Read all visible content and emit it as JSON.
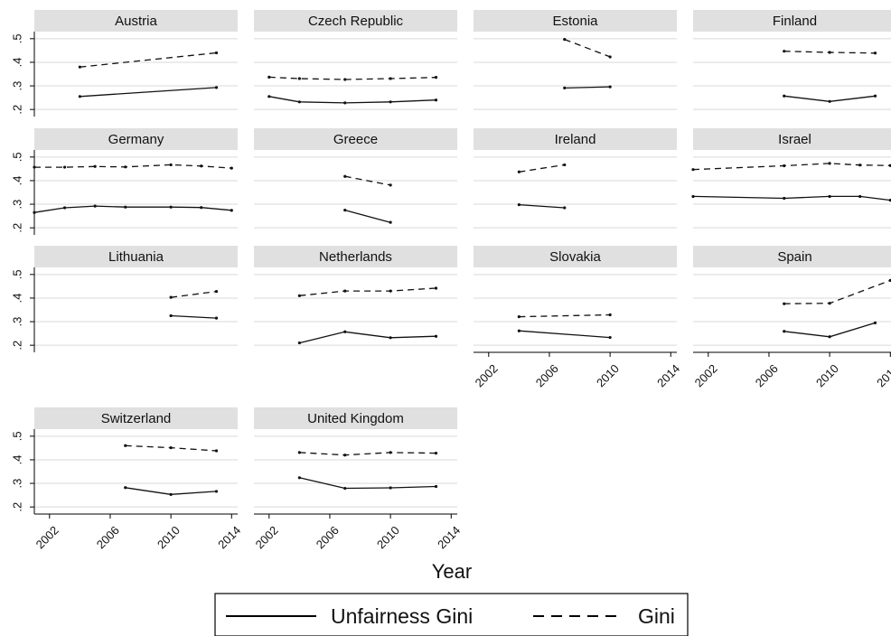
{
  "chart_data": {
    "type": "line",
    "xlabel": "Year",
    "x_ticks": [
      2002,
      2006,
      2010,
      2014
    ],
    "y_ticks": [
      0.2,
      0.3,
      0.4,
      0.5
    ],
    "y_tick_labels": [
      ".2",
      ".3",
      ".4",
      ".5"
    ],
    "xlim": [
      2001,
      2014.4
    ],
    "ylim": [
      0.17,
      0.53
    ],
    "grid": true,
    "legend_position": "bottom",
    "legend": [
      {
        "key": "unfairness",
        "label": "Unfairness Gini",
        "style": "solid"
      },
      {
        "key": "gini",
        "label": "Gini",
        "style": "dashed"
      }
    ],
    "panels": [
      {
        "title": "Austria",
        "unfairness": [
          [
            2004,
            0.255
          ],
          [
            2013,
            0.293
          ]
        ],
        "gini": [
          [
            2004,
            0.38
          ],
          [
            2013,
            0.44
          ]
        ]
      },
      {
        "title": "Czech Republic",
        "unfairness": [
          [
            2002,
            0.255
          ],
          [
            2004,
            0.232
          ],
          [
            2007,
            0.228
          ],
          [
            2010,
            0.232
          ],
          [
            2013,
            0.24
          ]
        ],
        "gini": [
          [
            2002,
            0.337
          ],
          [
            2004,
            0.331
          ],
          [
            2007,
            0.327
          ],
          [
            2010,
            0.331
          ],
          [
            2013,
            0.336
          ]
        ]
      },
      {
        "title": "Estonia",
        "unfairness": [
          [
            2007,
            0.291
          ],
          [
            2010,
            0.296
          ]
        ],
        "gini": [
          [
            2007,
            0.497
          ],
          [
            2010,
            0.423
          ]
        ]
      },
      {
        "title": "Finland",
        "unfairness": [
          [
            2007,
            0.257
          ],
          [
            2010,
            0.234
          ],
          [
            2013,
            0.257
          ]
        ],
        "gini": [
          [
            2007,
            0.447
          ],
          [
            2010,
            0.442
          ],
          [
            2013,
            0.439
          ]
        ]
      },
      {
        "title": "Germany",
        "unfairness": [
          [
            2001,
            0.265
          ],
          [
            2003,
            0.285
          ],
          [
            2005,
            0.292
          ],
          [
            2007,
            0.288
          ],
          [
            2010,
            0.288
          ],
          [
            2012,
            0.286
          ],
          [
            2014,
            0.274
          ]
        ],
        "gini": [
          [
            2001,
            0.457
          ],
          [
            2003,
            0.457
          ],
          [
            2005,
            0.46
          ],
          [
            2007,
            0.458
          ],
          [
            2010,
            0.467
          ],
          [
            2012,
            0.462
          ],
          [
            2014,
            0.453
          ]
        ]
      },
      {
        "title": "Greece",
        "unfairness": [
          [
            2007,
            0.275
          ],
          [
            2010,
            0.223
          ]
        ],
        "gini": [
          [
            2007,
            0.418
          ],
          [
            2010,
            0.381
          ]
        ]
      },
      {
        "title": "Ireland",
        "unfairness": [
          [
            2004,
            0.298
          ],
          [
            2007,
            0.285
          ]
        ],
        "gini": [
          [
            2004,
            0.437
          ],
          [
            2007,
            0.467
          ]
        ]
      },
      {
        "title": "Israel",
        "unfairness": [
          [
            2001,
            0.333
          ],
          [
            2007,
            0.325
          ],
          [
            2010,
            0.333
          ],
          [
            2012,
            0.333
          ],
          [
            2014,
            0.317
          ]
        ],
        "gini": [
          [
            2001,
            0.447
          ],
          [
            2007,
            0.463
          ],
          [
            2010,
            0.473
          ],
          [
            2012,
            0.466
          ],
          [
            2014,
            0.464
          ]
        ]
      },
      {
        "title": "Lithuania",
        "unfairness": [
          [
            2010,
            0.325
          ],
          [
            2013,
            0.315
          ]
        ],
        "gini": [
          [
            2010,
            0.403
          ],
          [
            2013,
            0.428
          ]
        ]
      },
      {
        "title": "Netherlands",
        "unfairness": [
          [
            2004,
            0.21
          ],
          [
            2007,
            0.257
          ],
          [
            2010,
            0.232
          ],
          [
            2013,
            0.238
          ]
        ],
        "gini": [
          [
            2004,
            0.41
          ],
          [
            2007,
            0.43
          ],
          [
            2010,
            0.43
          ],
          [
            2013,
            0.442
          ]
        ]
      },
      {
        "title": "Slovakia",
        "unfairness": [
          [
            2004,
            0.261
          ],
          [
            2010,
            0.233
          ]
        ],
        "gini": [
          [
            2004,
            0.321
          ],
          [
            2010,
            0.329
          ]
        ]
      },
      {
        "title": "Spain",
        "unfairness": [
          [
            2007,
            0.259
          ],
          [
            2010,
            0.236
          ],
          [
            2013,
            0.295
          ]
        ],
        "gini": [
          [
            2007,
            0.376
          ],
          [
            2010,
            0.378
          ],
          [
            2014,
            0.475
          ]
        ]
      },
      {
        "title": "Switzerland",
        "unfairness": [
          [
            2007,
            0.282
          ],
          [
            2010,
            0.253
          ],
          [
            2013,
            0.266
          ]
        ],
        "gini": [
          [
            2007,
            0.46
          ],
          [
            2010,
            0.451
          ],
          [
            2013,
            0.438
          ]
        ]
      },
      {
        "title": "United Kingdom",
        "unfairness": [
          [
            2004,
            0.324
          ],
          [
            2007,
            0.279
          ],
          [
            2010,
            0.281
          ],
          [
            2013,
            0.287
          ]
        ],
        "gini": [
          [
            2004,
            0.431
          ],
          [
            2007,
            0.42
          ],
          [
            2010,
            0.431
          ],
          [
            2013,
            0.428
          ]
        ]
      }
    ]
  }
}
